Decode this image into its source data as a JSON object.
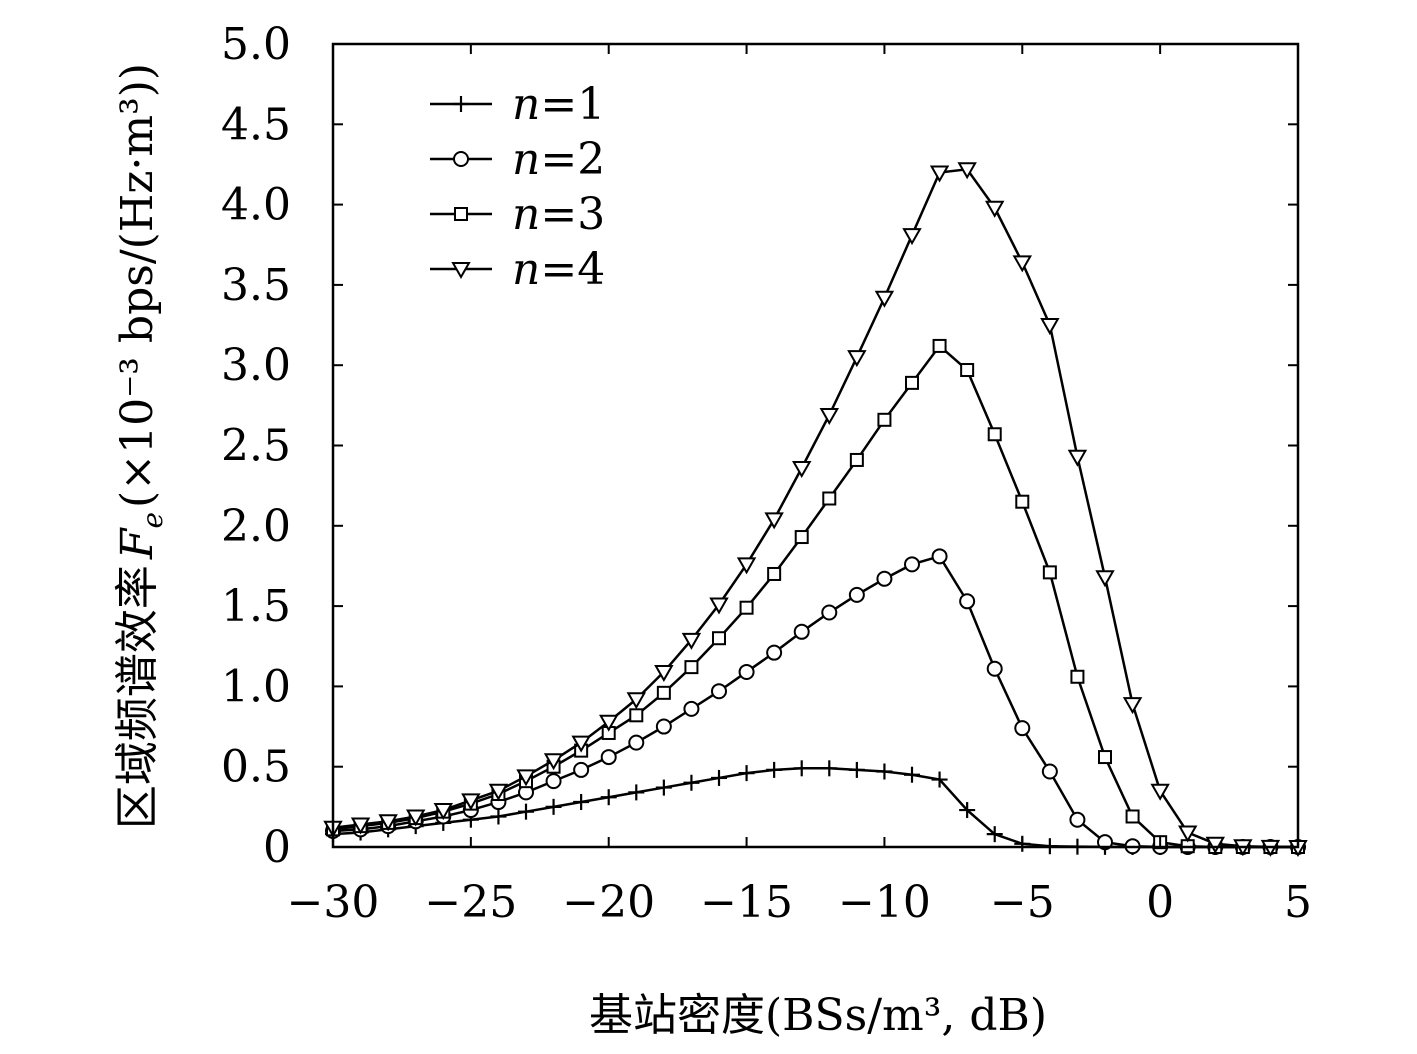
{
  "chart_data": {
    "type": "line",
    "xlabel": "基站密度(BSs/m³, dB)",
    "ylabel": "区域频谱效率",
    "ylabel_symbol": "F",
    "ylabel_subscript": "e",
    "ylabel_unit": "(×10⁻³ bps/(Hz·m³))",
    "xlim": [
      -30,
      5
    ],
    "ylim": [
      0,
      5.0
    ],
    "x_ticks": [
      -30,
      -25,
      -20,
      -15,
      -10,
      -5,
      0,
      5
    ],
    "x_tick_labels": [
      "−30",
      "−25",
      "−20",
      "−15",
      "−10",
      "−5",
      "0",
      "5"
    ],
    "y_ticks": [
      0,
      0.5,
      1.0,
      1.5,
      2.0,
      2.5,
      3.0,
      3.5,
      4.0,
      4.5,
      5.0
    ],
    "y_tick_labels": [
      "0",
      "0.5",
      "1.0",
      "1.5",
      "2.0",
      "2.5",
      "3.0",
      "3.5",
      "4.0",
      "4.5",
      "5.0"
    ],
    "grid": false,
    "legend_position": "top-left",
    "x": [
      -30,
      -29,
      -28,
      -27,
      -26,
      -25,
      -24,
      -23,
      -22,
      -21,
      -20,
      -19,
      -18,
      -17,
      -16,
      -15,
      -14,
      -13,
      -12,
      -11,
      -10,
      -9,
      -8,
      -7,
      -6,
      -5,
      -4,
      -3,
      -2,
      -1,
      0,
      1,
      2,
      3,
      4,
      5
    ],
    "series": [
      {
        "name": "n=1",
        "name_var": "n",
        "name_eq": "=1",
        "marker": "plus",
        "values": [
          0.08,
          0.09,
          0.11,
          0.13,
          0.15,
          0.17,
          0.19,
          0.22,
          0.25,
          0.28,
          0.31,
          0.34,
          0.37,
          0.4,
          0.43,
          0.46,
          0.48,
          0.49,
          0.49,
          0.48,
          0.47,
          0.45,
          0.42,
          0.23,
          0.08,
          0.02,
          0.005,
          0.002,
          0.001,
          0.0,
          0.0,
          0.0,
          0.0,
          0.0,
          0.0,
          0.0
        ]
      },
      {
        "name": "n=2",
        "name_var": "n",
        "name_eq": "=2",
        "marker": "circle",
        "values": [
          0.1,
          0.11,
          0.13,
          0.16,
          0.19,
          0.23,
          0.28,
          0.34,
          0.41,
          0.48,
          0.56,
          0.65,
          0.75,
          0.86,
          0.97,
          1.09,
          1.21,
          1.34,
          1.46,
          1.57,
          1.67,
          1.76,
          1.81,
          1.53,
          1.11,
          0.74,
          0.47,
          0.17,
          0.03,
          0.005,
          0.001,
          0.0,
          0.0,
          0.0,
          0.0,
          0.0
        ]
      },
      {
        "name": "n=3",
        "name_var": "n",
        "name_eq": "=3",
        "marker": "square",
        "values": [
          0.11,
          0.13,
          0.15,
          0.18,
          0.22,
          0.27,
          0.33,
          0.41,
          0.5,
          0.6,
          0.71,
          0.82,
          0.96,
          1.12,
          1.3,
          1.49,
          1.7,
          1.93,
          2.17,
          2.41,
          2.66,
          2.89,
          3.12,
          2.97,
          2.57,
          2.15,
          1.71,
          1.06,
          0.56,
          0.19,
          0.03,
          0.005,
          0.0,
          0.0,
          0.0,
          0.0
        ]
      },
      {
        "name": "n=4",
        "name_var": "n",
        "name_eq": "=4",
        "marker": "triangle-down",
        "values": [
          0.12,
          0.14,
          0.16,
          0.19,
          0.23,
          0.29,
          0.35,
          0.44,
          0.54,
          0.65,
          0.78,
          0.92,
          1.09,
          1.29,
          1.51,
          1.76,
          2.04,
          2.36,
          2.69,
          3.05,
          3.42,
          3.81,
          4.2,
          4.22,
          3.98,
          3.64,
          3.25,
          2.43,
          1.68,
          0.89,
          0.35,
          0.09,
          0.02,
          0.005,
          0.001,
          0.0
        ]
      }
    ]
  }
}
